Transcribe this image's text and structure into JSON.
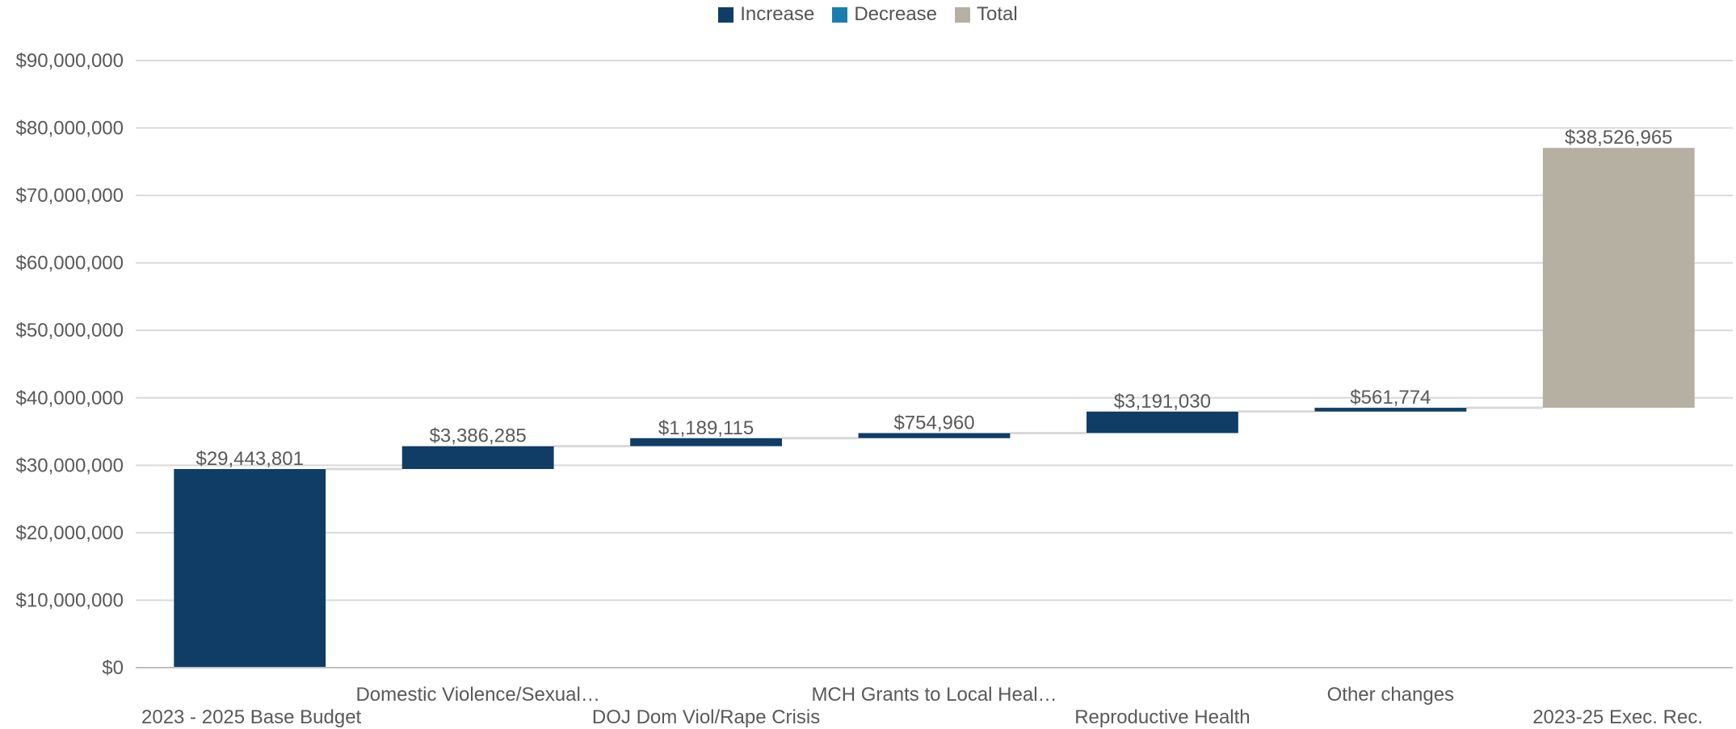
{
  "chart_data": {
    "type": "bar",
    "subtype": "waterfall",
    "title": "",
    "xlabel": "",
    "ylabel": "",
    "ylim": [
      0,
      90000000
    ],
    "yticks": [
      0,
      10000000,
      20000000,
      30000000,
      40000000,
      50000000,
      60000000,
      70000000,
      80000000,
      90000000
    ],
    "ytick_labels": [
      "$0",
      "$10,000,000",
      "$20,000,000",
      "$30,000,000",
      "$40,000,000",
      "$50,000,000",
      "$60,000,000",
      "$70,000,000",
      "$80,000,000",
      "$90,000,000"
    ],
    "grid": true,
    "legend_position": "top-center",
    "legend": [
      {
        "name": "Increase",
        "color": "#0f3d66"
      },
      {
        "name": "Decrease",
        "color": "#1a7db0"
      },
      {
        "name": "Total",
        "color": "#b6b0a2"
      }
    ],
    "categories": [
      "2023 - 2025 Base Budget",
      "Domestic Violence/Sexual…",
      "DOJ Dom Viol/Rape Crisis",
      "MCH Grants to Local Heal…",
      "Reproductive Health",
      "Other changes",
      "2023-25 Exec. Rec."
    ],
    "bars": [
      {
        "kind": "Increase",
        "start": 0,
        "end": 29443801,
        "label": "$29,443,801"
      },
      {
        "kind": "Increase",
        "start": 29443801,
        "end": 32830086,
        "label": "$3,386,285"
      },
      {
        "kind": "Increase",
        "start": 32830086,
        "end": 34019201,
        "label": "$1,189,115"
      },
      {
        "kind": "Increase",
        "start": 34019201,
        "end": 34774161,
        "label": "$754,960"
      },
      {
        "kind": "Increase",
        "start": 34774161,
        "end": 37965191,
        "label": "$3,191,030"
      },
      {
        "kind": "Increase",
        "start": 37965191,
        "end": 38526965,
        "label": "$561,774"
      },
      {
        "kind": "Total",
        "start": 38526965,
        "end": 77053930,
        "label": "$38,526,965"
      }
    ],
    "label_rows": [
      1,
      0,
      1,
      0,
      1,
      0,
      1
    ]
  }
}
